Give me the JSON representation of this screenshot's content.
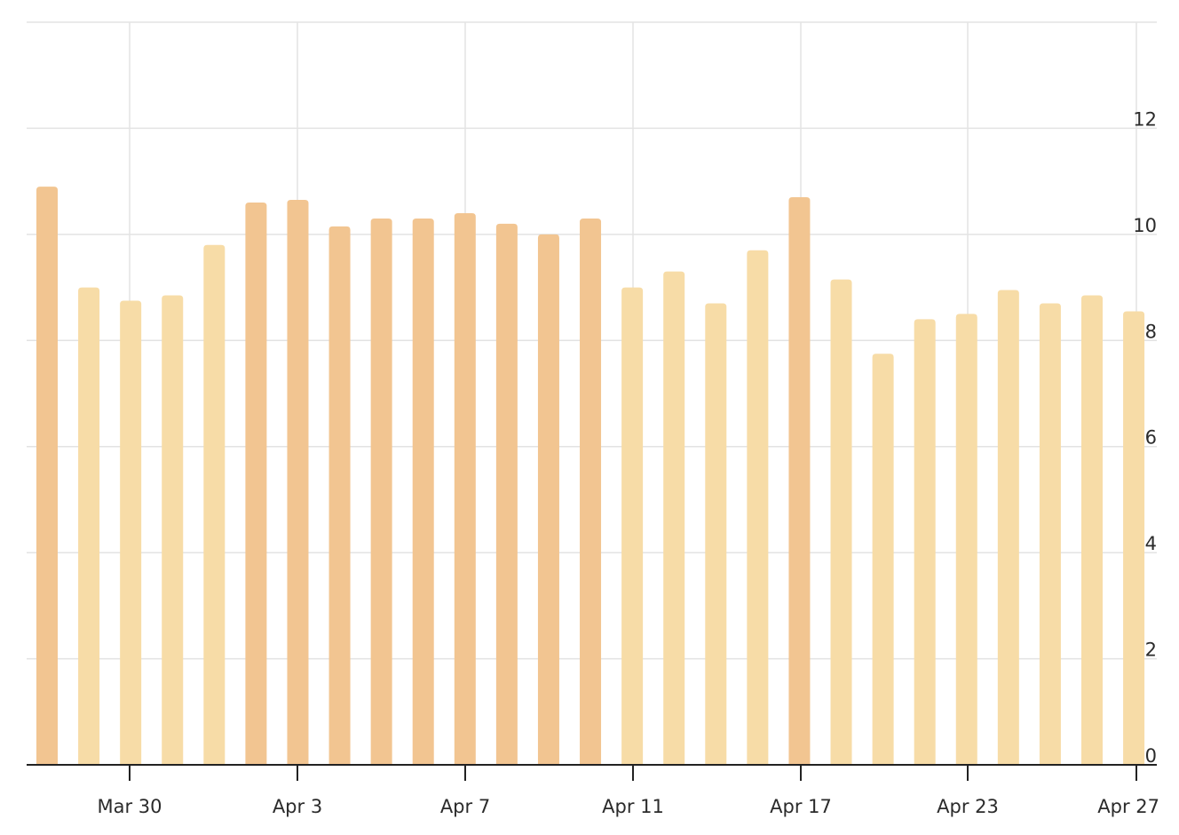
{
  "chart_data": {
    "type": "bar",
    "title": "",
    "xlabel": "",
    "ylabel": "",
    "x_ticks": [
      "Mar 30",
      "Apr 3",
      "Apr 7",
      "Apr 11",
      "Apr 17",
      "Apr 23",
      "Apr 27"
    ],
    "y_ticks": [
      "0",
      "2",
      "4",
      "6",
      "8",
      "10",
      "12"
    ],
    "ylim": [
      0,
      14
    ],
    "grid": true,
    "y_axis_side": "right",
    "colors": {
      "highlight": "#f2c591",
      "normal": "#f7dca7"
    },
    "bars": [
      {
        "value": 10.9,
        "highlight": true
      },
      {
        "value": 9.0,
        "highlight": false
      },
      {
        "value": 8.75,
        "highlight": false
      },
      {
        "value": 8.85,
        "highlight": false
      },
      {
        "value": 9.8,
        "highlight": false
      },
      {
        "value": 10.6,
        "highlight": true
      },
      {
        "value": 10.65,
        "highlight": true
      },
      {
        "value": 10.15,
        "highlight": true
      },
      {
        "value": 10.3,
        "highlight": true
      },
      {
        "value": 10.3,
        "highlight": true
      },
      {
        "value": 10.4,
        "highlight": true
      },
      {
        "value": 10.2,
        "highlight": true
      },
      {
        "value": 10.0,
        "highlight": true
      },
      {
        "value": 10.3,
        "highlight": true
      },
      {
        "value": 9.0,
        "highlight": false
      },
      {
        "value": 9.3,
        "highlight": false
      },
      {
        "value": 8.7,
        "highlight": false
      },
      {
        "value": 9.7,
        "highlight": false
      },
      {
        "value": 10.7,
        "highlight": true
      },
      {
        "value": 9.15,
        "highlight": false
      },
      {
        "value": 7.75,
        "highlight": false
      },
      {
        "value": 8.4,
        "highlight": false
      },
      {
        "value": 8.5,
        "highlight": false
      },
      {
        "value": 8.95,
        "highlight": false
      },
      {
        "value": 8.7,
        "highlight": false
      },
      {
        "value": 8.85,
        "highlight": false
      },
      {
        "value": 8.55,
        "highlight": false
      }
    ]
  }
}
